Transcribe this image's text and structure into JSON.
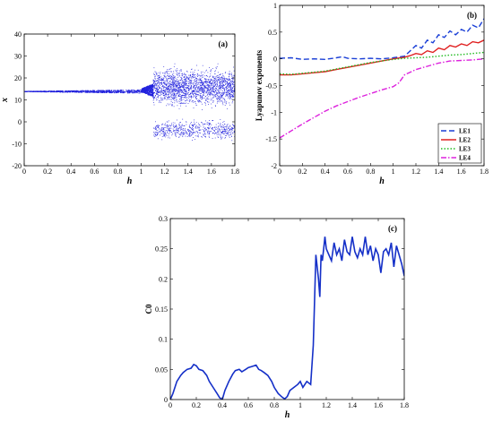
{
  "chart_data": [
    {
      "type": "scatter",
      "panel_label": "(a)",
      "xlabel": "h",
      "ylabel": "x",
      "xlim": [
        0,
        1.8
      ],
      "ylim": [
        -20,
        40
      ],
      "xticks": [
        "0",
        "0.2",
        "0.4",
        "0.6",
        "0.8",
        "1",
        "1.2",
        "1.4",
        "1.6",
        "1.8"
      ],
      "yticks": [
        "-20",
        "-10",
        "0",
        "10",
        "20",
        "30",
        "40"
      ],
      "color": "#2222dd",
      "regions": [
        {
          "h_range": [
            0,
            1.0
          ],
          "x_center": 14,
          "x_halfwidth_range": [
            0.1,
            0.8
          ]
        },
        {
          "h_range": [
            1.0,
            1.1
          ],
          "x_center": 14.5,
          "x_halfwidth_range": [
            0.8,
            3
          ]
        },
        {
          "h_range": [
            1.1,
            1.8
          ],
          "bands": [
            [
              5,
              27
            ],
            [
              -9,
              2
            ]
          ]
        }
      ]
    },
    {
      "type": "line",
      "panel_label": "(b)",
      "xlabel": "h",
      "ylabel": "Lyapunov exponents",
      "xlim": [
        0,
        1.8
      ],
      "ylim": [
        -2,
        1
      ],
      "xticks": [
        "0",
        "0.2",
        "0.4",
        "0.6",
        "0.8",
        "1",
        "1.2",
        "1.4",
        "1.6",
        "1.8"
      ],
      "yticks": [
        "-2",
        "-1.5",
        "-1",
        "-0.5",
        "0",
        "0.5",
        "1"
      ],
      "legend_position": "bottom-right",
      "series": [
        {
          "name": "LE1",
          "color": "#1a3fd6",
          "dash": "dashed",
          "x": [
            0,
            0.1,
            0.2,
            0.3,
            0.4,
            0.5,
            0.55,
            0.6,
            0.7,
            0.8,
            0.9,
            1.0,
            1.1,
            1.15,
            1.2,
            1.25,
            1.3,
            1.35,
            1.4,
            1.45,
            1.5,
            1.55,
            1.6,
            1.65,
            1.7,
            1.75,
            1.8
          ],
          "y": [
            0.01,
            0.02,
            -0.01,
            0.0,
            -0.01,
            0.02,
            0.04,
            0.01,
            0.0,
            0.01,
            0.0,
            0.02,
            0.05,
            0.15,
            0.25,
            0.2,
            0.35,
            0.3,
            0.45,
            0.4,
            0.52,
            0.45,
            0.55,
            0.5,
            0.63,
            0.58,
            0.75
          ]
        },
        {
          "name": "LE2",
          "color": "#e02020",
          "dash": "solid",
          "x": [
            0,
            0.1,
            0.2,
            0.3,
            0.4,
            0.5,
            0.6,
            0.7,
            0.8,
            0.9,
            1.0,
            1.1,
            1.15,
            1.2,
            1.25,
            1.3,
            1.35,
            1.4,
            1.45,
            1.5,
            1.55,
            1.6,
            1.65,
            1.7,
            1.75,
            1.8
          ],
          "y": [
            -0.3,
            -0.3,
            -0.28,
            -0.26,
            -0.24,
            -0.2,
            -0.16,
            -0.12,
            -0.08,
            -0.04,
            0.0,
            0.03,
            0.06,
            0.1,
            0.08,
            0.15,
            0.12,
            0.2,
            0.17,
            0.25,
            0.22,
            0.28,
            0.25,
            0.32,
            0.3,
            0.35
          ]
        },
        {
          "name": "LE3",
          "color": "#22bb22",
          "dash": "dotted",
          "x": [
            0,
            0.1,
            0.2,
            0.3,
            0.4,
            0.5,
            0.6,
            0.7,
            0.8,
            0.9,
            1.0,
            1.1,
            1.2,
            1.3,
            1.4,
            1.5,
            1.6,
            1.7,
            1.8
          ],
          "y": [
            -0.28,
            -0.29,
            -0.27,
            -0.25,
            -0.23,
            -0.19,
            -0.15,
            -0.11,
            -0.07,
            -0.04,
            -0.01,
            0.01,
            0.02,
            0.03,
            0.05,
            0.07,
            0.08,
            0.1,
            0.12
          ]
        },
        {
          "name": "LE4",
          "color": "#dd22dd",
          "dash": "dashdot",
          "x": [
            0,
            0.1,
            0.2,
            0.3,
            0.4,
            0.5,
            0.6,
            0.7,
            0.8,
            0.9,
            1.0,
            1.05,
            1.1,
            1.2,
            1.3,
            1.4,
            1.5,
            1.6,
            1.7,
            1.8
          ],
          "y": [
            -1.48,
            -1.35,
            -1.22,
            -1.1,
            -0.98,
            -0.88,
            -0.8,
            -0.72,
            -0.65,
            -0.58,
            -0.52,
            -0.45,
            -0.3,
            -0.2,
            -0.14,
            -0.08,
            -0.04,
            -0.03,
            -0.02,
            0.0
          ]
        }
      ]
    },
    {
      "type": "line",
      "panel_label": "(c)",
      "xlabel": "h",
      "ylabel": "C0",
      "xlim": [
        0,
        1.8
      ],
      "ylim": [
        0,
        0.3
      ],
      "xticks": [
        "0",
        "0.2",
        "0.4",
        "0.6",
        "0.8",
        "1",
        "1.2",
        "1.4",
        "1.6",
        "1.8"
      ],
      "yticks": [
        "0",
        "0.05",
        "0.1",
        "0.15",
        "0.2",
        "0.25",
        "0.3"
      ],
      "series": [
        {
          "name": "",
          "color": "#1530c8",
          "x": [
            0,
            0.02,
            0.05,
            0.08,
            0.1,
            0.13,
            0.16,
            0.18,
            0.2,
            0.22,
            0.25,
            0.28,
            0.3,
            0.33,
            0.36,
            0.38,
            0.4,
            0.42,
            0.45,
            0.48,
            0.5,
            0.53,
            0.55,
            0.58,
            0.6,
            0.63,
            0.66,
            0.68,
            0.7,
            0.72,
            0.75,
            0.78,
            0.8,
            0.83,
            0.86,
            0.88,
            0.9,
            0.92,
            0.95,
            0.98,
            1.0,
            1.02,
            1.05,
            1.08,
            1.1,
            1.12,
            1.14,
            1.15,
            1.16,
            1.17,
            1.18,
            1.19,
            1.2,
            1.22,
            1.24,
            1.26,
            1.28,
            1.3,
            1.32,
            1.34,
            1.36,
            1.38,
            1.4,
            1.42,
            1.44,
            1.46,
            1.48,
            1.5,
            1.52,
            1.54,
            1.56,
            1.58,
            1.6,
            1.62,
            1.64,
            1.66,
            1.68,
            1.7,
            1.72,
            1.74,
            1.76,
            1.78,
            1.8
          ],
          "y": [
            0.0,
            0.01,
            0.03,
            0.04,
            0.045,
            0.05,
            0.052,
            0.058,
            0.056,
            0.05,
            0.048,
            0.04,
            0.03,
            0.02,
            0.01,
            0.003,
            0.0,
            0.015,
            0.03,
            0.042,
            0.048,
            0.05,
            0.046,
            0.05,
            0.053,
            0.055,
            0.057,
            0.05,
            0.048,
            0.045,
            0.04,
            0.03,
            0.02,
            0.01,
            0.004,
            0.001,
            0.005,
            0.015,
            0.02,
            0.025,
            0.03,
            0.02,
            0.03,
            0.025,
            0.09,
            0.24,
            0.2,
            0.17,
            0.24,
            0.23,
            0.25,
            0.27,
            0.25,
            0.24,
            0.23,
            0.26,
            0.24,
            0.25,
            0.23,
            0.265,
            0.245,
            0.24,
            0.27,
            0.245,
            0.235,
            0.25,
            0.24,
            0.27,
            0.24,
            0.255,
            0.23,
            0.25,
            0.24,
            0.21,
            0.245,
            0.25,
            0.24,
            0.26,
            0.22,
            0.255,
            0.24,
            0.225,
            0.205
          ]
        }
      ]
    }
  ]
}
